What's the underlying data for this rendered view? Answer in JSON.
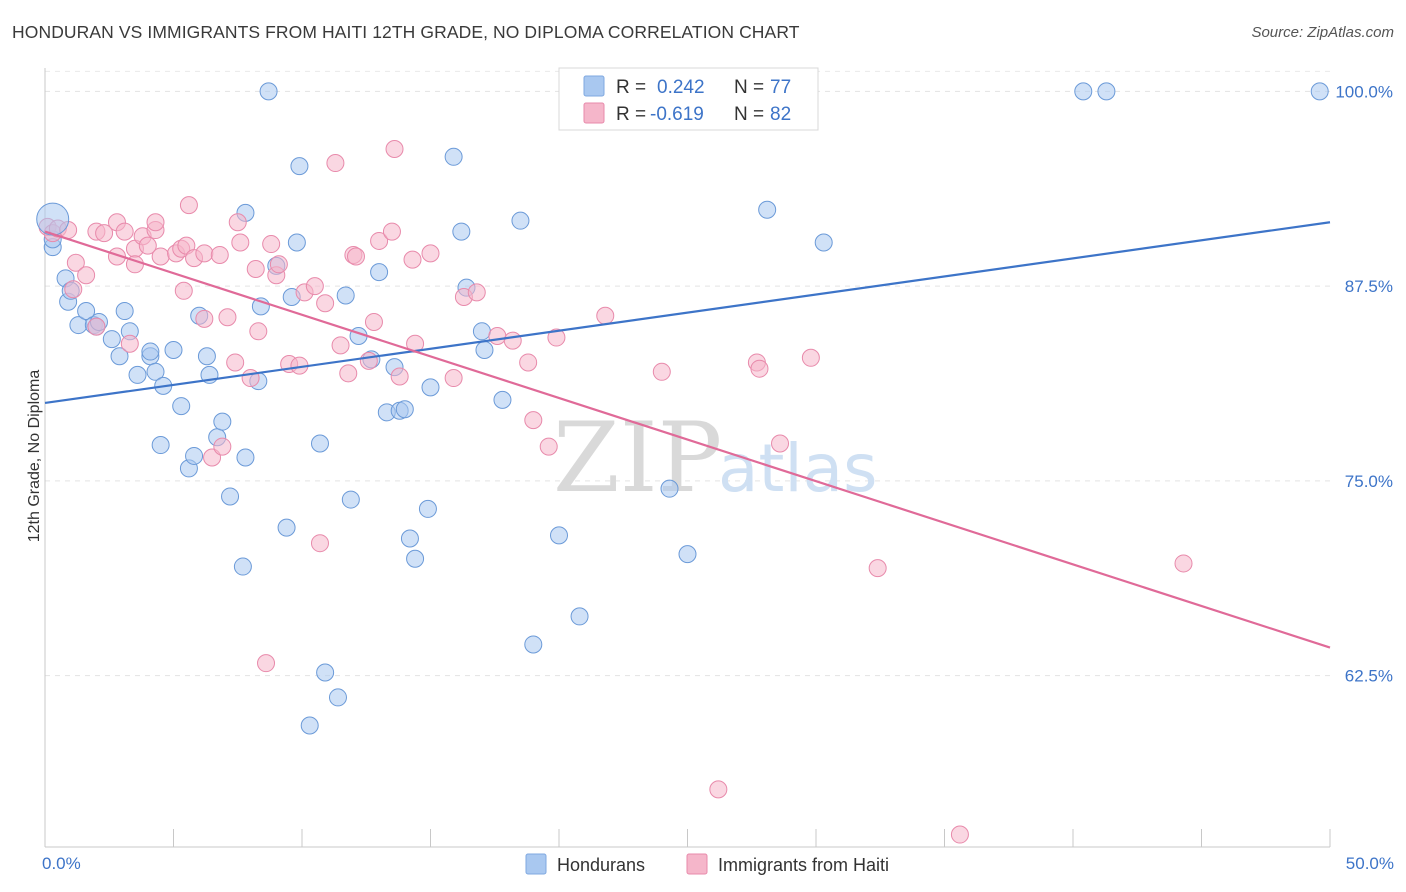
{
  "header": {
    "title": "HONDURAN VS IMMIGRANTS FROM HAITI 12TH GRADE, NO DIPLOMA CORRELATION CHART",
    "source": "Source: ZipAtlas.com"
  },
  "watermark": {
    "zip": "ZIP",
    "atlas": "atlas"
  },
  "legend_box": {
    "rows": [
      {
        "r_label": "R =",
        "r_value": "0.242",
        "n_label": "N =",
        "n_value": "77",
        "color": "#a9c8f0"
      },
      {
        "r_label": "R =",
        "r_value": "-0.619",
        "n_label": "N =",
        "n_value": "82",
        "color": "#f5b6ca"
      }
    ]
  },
  "bottom_legend": {
    "items": [
      {
        "label": "Hondurans",
        "color": "#a9c8f0"
      },
      {
        "label": "Immigrants from Haiti",
        "color": "#f5b6ca"
      }
    ]
  },
  "chart_data": {
    "type": "scatter",
    "title": "HONDURAN VS IMMIGRANTS FROM HAITI 12TH GRADE, NO DIPLOMA CORRELATION CHART",
    "xlabel": "",
    "ylabel": "12th Grade, No Diploma",
    "xlim": [
      0,
      50
    ],
    "ylim": [
      51.5,
      101.5
    ],
    "x_tick_labels": [
      "0.0%",
      "50.0%"
    ],
    "y_ticks": [
      62.5,
      75.0,
      87.5,
      100.0
    ],
    "y_tick_labels": [
      "62.5%",
      "75.0%",
      "87.5%",
      "100.0%"
    ],
    "grid": true,
    "colors": {
      "hondurans": "#3d74c8",
      "haiti": "#e06a98"
    },
    "series": [
      {
        "name": "Hondurans",
        "color": "#a9c8f0",
        "stroke": "#6b9ad8",
        "trend": {
          "x": [
            0,
            50
          ],
          "y": [
            80.0,
            91.6
          ]
        },
        "points": [
          [
            0.3,
            90.0
          ],
          [
            0.3,
            90.5
          ],
          [
            0.8,
            88.0
          ],
          [
            0.9,
            86.5
          ],
          [
            1.0,
            87.2
          ],
          [
            1.3,
            85.0
          ],
          [
            1.6,
            85.9
          ],
          [
            1.9,
            85.0
          ],
          [
            2.0,
            84.9
          ],
          [
            2.1,
            85.2
          ],
          [
            2.6,
            84.1
          ],
          [
            2.9,
            83.0
          ],
          [
            3.1,
            85.9
          ],
          [
            3.3,
            84.6
          ],
          [
            3.6,
            81.8
          ],
          [
            4.1,
            83.0
          ],
          [
            4.3,
            82.0
          ],
          [
            4.1,
            83.3
          ],
          [
            4.5,
            77.3
          ],
          [
            4.6,
            81.1
          ],
          [
            5.0,
            83.4
          ],
          [
            5.3,
            79.8
          ],
          [
            5.6,
            75.8
          ],
          [
            5.8,
            76.6
          ],
          [
            6.0,
            85.6
          ],
          [
            6.3,
            83.0
          ],
          [
            6.4,
            81.8
          ],
          [
            6.7,
            77.8
          ],
          [
            6.9,
            78.8
          ],
          [
            7.2,
            74.0
          ],
          [
            7.7,
            69.5
          ],
          [
            7.8,
            76.5
          ],
          [
            7.8,
            92.2
          ],
          [
            8.3,
            81.4
          ],
          [
            8.4,
            86.2
          ],
          [
            8.7,
            100.0
          ],
          [
            9.0,
            88.8
          ],
          [
            9.4,
            72.0
          ],
          [
            9.6,
            86.8
          ],
          [
            9.8,
            90.3
          ],
          [
            9.9,
            95.2
          ],
          [
            10.7,
            77.4
          ],
          [
            10.9,
            62.7
          ],
          [
            11.4,
            61.1
          ],
          [
            10.3,
            59.3
          ],
          [
            11.7,
            86.9
          ],
          [
            11.9,
            73.8
          ],
          [
            12.2,
            84.3
          ],
          [
            12.7,
            82.8
          ],
          [
            13.0,
            88.4
          ],
          [
            13.3,
            79.4
          ],
          [
            13.6,
            82.3
          ],
          [
            13.8,
            79.5
          ],
          [
            14.0,
            79.6
          ],
          [
            14.2,
            71.3
          ],
          [
            14.4,
            70.0
          ],
          [
            14.9,
            73.2
          ],
          [
            15.0,
            81.0
          ],
          [
            15.9,
            95.8
          ],
          [
            16.2,
            91.0
          ],
          [
            16.4,
            87.4
          ],
          [
            17.0,
            84.6
          ],
          [
            17.1,
            83.4
          ],
          [
            17.8,
            80.2
          ],
          [
            18.5,
            91.7
          ],
          [
            19.0,
            64.5
          ],
          [
            20.0,
            71.5
          ],
          [
            20.8,
            66.3
          ],
          [
            24.3,
            74.5
          ],
          [
            25.0,
            70.3
          ],
          [
            25.3,
            100.0
          ],
          [
            28.1,
            100.0
          ],
          [
            28.1,
            92.4
          ],
          [
            30.3,
            90.3
          ],
          [
            40.4,
            100.0
          ],
          [
            41.3,
            100.0
          ],
          [
            49.6,
            100.0
          ]
        ]
      },
      {
        "name": "Immigrants from Haiti",
        "color": "#f5b6ca",
        "stroke": "#e88aab",
        "trend": {
          "x": [
            0,
            50
          ],
          "y": [
            91.0,
            64.3
          ]
        },
        "points": [
          [
            0.1,
            91.3
          ],
          [
            0.3,
            90.9
          ],
          [
            0.5,
            91.2
          ],
          [
            0.9,
            91.1
          ],
          [
            1.1,
            87.3
          ],
          [
            1.2,
            89.0
          ],
          [
            1.6,
            88.2
          ],
          [
            2.0,
            84.9
          ],
          [
            2.0,
            91.0
          ],
          [
            2.3,
            90.9
          ],
          [
            2.8,
            91.6
          ],
          [
            2.8,
            89.4
          ],
          [
            3.1,
            91.0
          ],
          [
            3.3,
            83.8
          ],
          [
            3.5,
            89.9
          ],
          [
            3.5,
            88.9
          ],
          [
            3.8,
            90.7
          ],
          [
            4.0,
            90.1
          ],
          [
            4.3,
            91.1
          ],
          [
            4.3,
            91.6
          ],
          [
            4.5,
            89.4
          ],
          [
            5.1,
            89.6
          ],
          [
            5.3,
            89.9
          ],
          [
            5.5,
            90.1
          ],
          [
            5.4,
            87.2
          ],
          [
            5.6,
            92.7
          ],
          [
            5.8,
            89.3
          ],
          [
            6.2,
            85.4
          ],
          [
            6.2,
            89.6
          ],
          [
            6.5,
            76.5
          ],
          [
            6.8,
            89.5
          ],
          [
            6.9,
            77.2
          ],
          [
            7.1,
            85.5
          ],
          [
            7.4,
            82.6
          ],
          [
            7.5,
            91.6
          ],
          [
            7.6,
            90.3
          ],
          [
            8.0,
            81.6
          ],
          [
            8.2,
            88.6
          ],
          [
            8.3,
            84.6
          ],
          [
            8.8,
            90.2
          ],
          [
            8.6,
            63.3
          ],
          [
            9.0,
            88.2
          ],
          [
            9.1,
            88.9
          ],
          [
            9.5,
            82.5
          ],
          [
            9.9,
            82.4
          ],
          [
            10.1,
            87.1
          ],
          [
            10.5,
            87.5
          ],
          [
            10.7,
            71.0
          ],
          [
            10.9,
            86.4
          ],
          [
            11.3,
            95.4
          ],
          [
            11.5,
            83.7
          ],
          [
            11.8,
            81.9
          ],
          [
            12.0,
            89.5
          ],
          [
            12.1,
            89.4
          ],
          [
            12.6,
            82.7
          ],
          [
            12.8,
            85.2
          ],
          [
            13.0,
            90.4
          ],
          [
            13.5,
            91.0
          ],
          [
            13.6,
            96.3
          ],
          [
            13.8,
            81.7
          ],
          [
            14.3,
            89.2
          ],
          [
            14.4,
            83.8
          ],
          [
            15.0,
            89.6
          ],
          [
            15.9,
            81.6
          ],
          [
            16.3,
            86.8
          ],
          [
            16.8,
            87.1
          ],
          [
            17.6,
            84.3
          ],
          [
            18.2,
            84.0
          ],
          [
            18.8,
            82.6
          ],
          [
            19.0,
            78.9
          ],
          [
            19.6,
            77.2
          ],
          [
            19.9,
            84.2
          ],
          [
            21.8,
            85.6
          ],
          [
            24.0,
            82.0
          ],
          [
            26.2,
            55.2
          ],
          [
            27.7,
            82.6
          ],
          [
            27.8,
            82.2
          ],
          [
            28.6,
            77.4
          ],
          [
            29.8,
            82.9
          ],
          [
            32.4,
            69.4
          ],
          [
            35.6,
            52.3
          ],
          [
            44.3,
            69.7
          ]
        ]
      }
    ]
  }
}
